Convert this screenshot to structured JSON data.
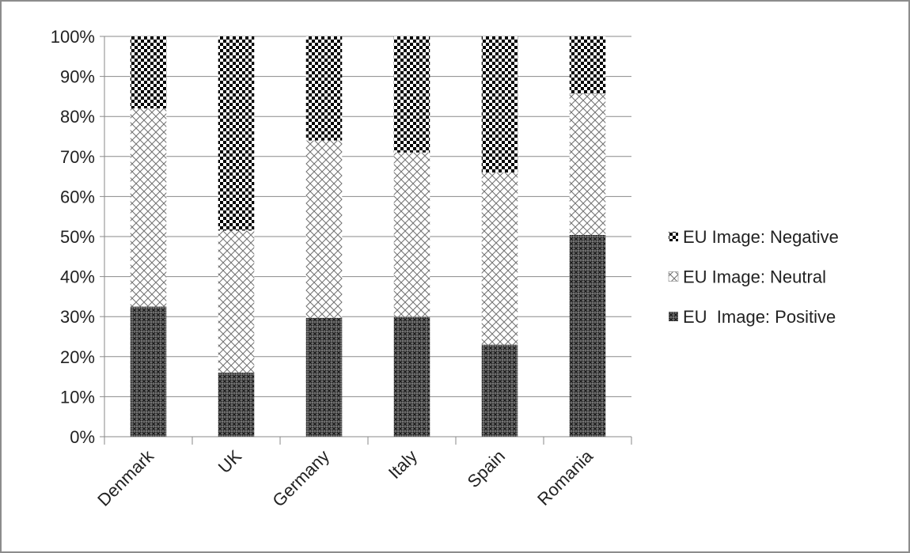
{
  "chart_data": {
    "type": "bar",
    "stacked": true,
    "percent_stacked": true,
    "title": "",
    "xlabel": "",
    "ylabel": "",
    "ylim": [
      0,
      100
    ],
    "y_ticks": [
      "0%",
      "10%",
      "20%",
      "30%",
      "40%",
      "50%",
      "60%",
      "70%",
      "80%",
      "90%",
      "100%"
    ],
    "grid": true,
    "legend_position": "right",
    "categories": [
      "Denmark",
      "UK",
      "Germany",
      "Italy",
      "Spain",
      "Romania"
    ],
    "series": [
      {
        "name": "EU  Image: Positive",
        "pattern": "dense-crosshatch",
        "values": [
          32.5,
          16,
          29.7,
          30,
          23,
          50.4
        ]
      },
      {
        "name": "EU Image: Neutral",
        "pattern": "light-crosshatch",
        "values": [
          49.5,
          35.5,
          44.3,
          41,
          43,
          35.3
        ]
      },
      {
        "name": "EU Image: Negative",
        "pattern": "checkerboard",
        "values": [
          18,
          48.5,
          26,
          29,
          34,
          14.3
        ]
      }
    ],
    "legend_order": [
      "EU Image: Negative",
      "EU Image: Neutral",
      "EU  Image: Positive"
    ]
  }
}
